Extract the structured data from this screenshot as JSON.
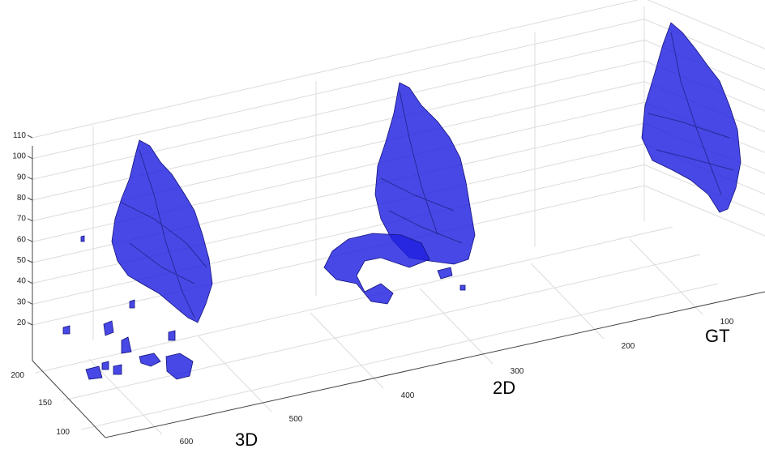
{
  "axes": {
    "z_ticks": [
      20,
      30,
      40,
      50,
      60,
      70,
      80,
      90,
      100,
      110
    ],
    "x_ticks": [
      600,
      500,
      400,
      300,
      200,
      100
    ],
    "y_ticks": [
      200,
      150,
      100
    ]
  },
  "labels": [
    "3D",
    "2D",
    "GT"
  ]
}
